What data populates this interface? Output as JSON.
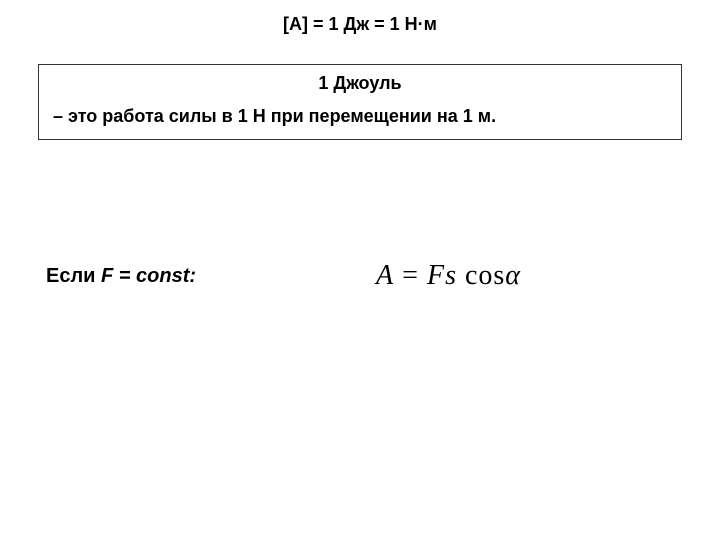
{
  "slide": {
    "top_equation": "[А] = 1 Дж = 1 Н·м",
    "definition": {
      "title": "1 Джоуль",
      "body": "– это работа силы в 1 Н при перемещении на 1 м."
    },
    "condition": {
      "prefix": "Если ",
      "var": "F = const:"
    },
    "formula": {
      "A": "A",
      "eq": " = ",
      "F": "F",
      "s": "s",
      "space": " ",
      "cos": "cos",
      "alpha": "α"
    },
    "styling": {
      "background_color": "#ffffff",
      "text_color": "#000000",
      "box_border_color": "#333333",
      "title_fontsize": 18,
      "body_fontsize": 18,
      "condition_fontsize": 20,
      "formula_fontsize": 28,
      "font_family": "Arial",
      "formula_font_family": "Times New Roman"
    }
  }
}
